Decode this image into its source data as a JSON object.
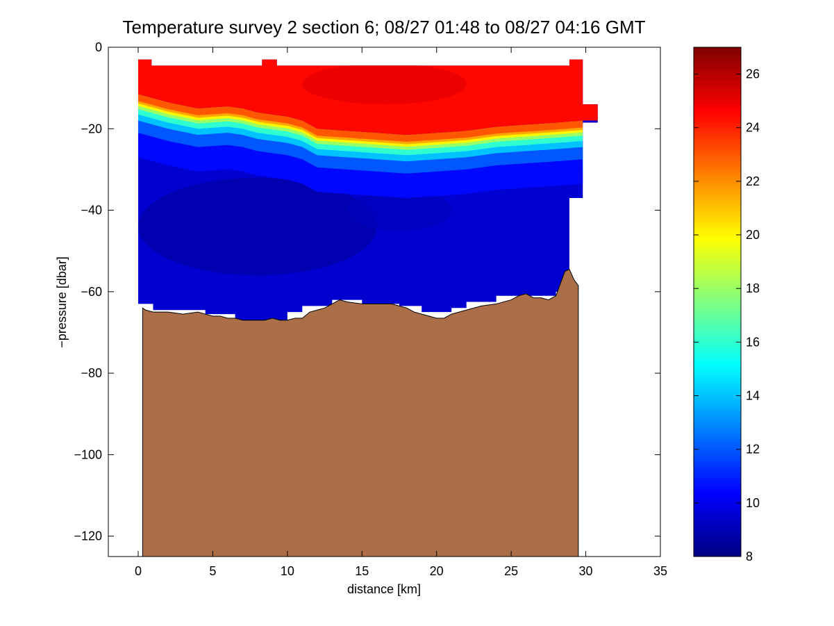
{
  "chart_data": {
    "type": "heatmap",
    "title": "Temperature survey 2 section 6; 08/27 01:48 to 08/27 04:16 GMT",
    "xlabel": "distance [km]",
    "ylabel": "−pressure [dbar]",
    "xlim": [
      -2,
      35
    ],
    "ylim": [
      -125,
      0
    ],
    "x_ticks": [
      0,
      5,
      10,
      15,
      20,
      25,
      30,
      35
    ],
    "x_tick_labels": [
      "0",
      "5",
      "10",
      "15",
      "20",
      "25",
      "30",
      "35"
    ],
    "y_ticks": [
      0,
      -20,
      -40,
      -60,
      -80,
      -100,
      -120
    ],
    "y_tick_labels": [
      "0",
      "−20",
      "−40",
      "−60",
      "−80",
      "−100",
      "−120"
    ],
    "grid": false,
    "colorbar": {
      "min": 8,
      "max": 27,
      "ticks": [
        8,
        10,
        12,
        14,
        16,
        18,
        20,
        22,
        24,
        26
      ],
      "tick_labels": [
        "8",
        "10",
        "12",
        "14",
        "16",
        "18",
        "20",
        "22",
        "24",
        "26"
      ],
      "colormap": "jet"
    },
    "seabed_color": "#ab6e49",
    "data_top_x": [
      0,
      0.9,
      0.9,
      8.3,
      8.3,
      9.3,
      9.3,
      28.9,
      28.9,
      29.8
    ],
    "data_top_y": [
      -3,
      -3,
      -4.5,
      -4.5,
      -3,
      -3,
      -4.5,
      -4.5,
      -3,
      -3
    ],
    "data_right_steps": [
      [
        29.8,
        -14
      ],
      [
        30.8,
        -14
      ],
      [
        30.8,
        -18.5
      ],
      [
        29.8,
        -18.5
      ],
      [
        29.8,
        -37
      ],
      [
        28.9,
        -37
      ],
      [
        28.9,
        -58
      ]
    ],
    "data_bottom_steps": [
      [
        0,
        -63
      ],
      [
        1,
        -63
      ],
      [
        1,
        -64.5
      ],
      [
        4.5,
        -64.5
      ],
      [
        4.5,
        -65.5
      ],
      [
        6.5,
        -65.5
      ],
      [
        6.5,
        -67.5
      ],
      [
        10,
        -67.5
      ],
      [
        10,
        -65
      ],
      [
        11,
        -65
      ],
      [
        11,
        -63.5
      ],
      [
        13,
        -63.5
      ],
      [
        13,
        -62
      ],
      [
        15,
        -62
      ],
      [
        15,
        -63
      ],
      [
        17.5,
        -63
      ],
      [
        17.5,
        -63.5
      ],
      [
        19,
        -63.5
      ],
      [
        19,
        -65
      ],
      [
        21,
        -65
      ],
      [
        21,
        -64
      ],
      [
        22,
        -64
      ],
      [
        22,
        -62.5
      ],
      [
        24,
        -62.5
      ],
      [
        24,
        -61
      ],
      [
        28,
        -61
      ],
      [
        28,
        -60
      ],
      [
        28.9,
        -60
      ]
    ],
    "thermocline": {
      "x": [
        0,
        2,
        4,
        6,
        7,
        8,
        10,
        11,
        12,
        14,
        16,
        18,
        20,
        22,
        24,
        26,
        28,
        29.8
      ],
      "y": [
        -15,
        -17,
        -18.5,
        -18,
        -18.5,
        -19.5,
        -20.5,
        -21.5,
        -23.5,
        -24,
        -24.5,
        -25,
        -24.5,
        -24,
        -23,
        -22.5,
        -22,
        -21.5
      ]
    },
    "warm_core_temp": 25,
    "surface_temp": 24.5,
    "deep_temp": 9.5,
    "cold_core_temp": 8.8,
    "cyan_lens_temp": 15.5,
    "seabed": {
      "x": [
        0.3,
        0.5,
        1,
        2,
        3,
        4,
        4.5,
        5,
        5.5,
        6,
        6.5,
        7,
        7.5,
        8,
        8.5,
        9,
        9.5,
        10,
        10.5,
        11,
        11.5,
        12,
        12.5,
        13,
        13.5,
        14,
        15,
        16,
        17,
        18,
        18.5,
        19,
        19.5,
        20,
        20.5,
        21,
        22,
        23,
        24,
        25,
        25.5,
        26,
        26.5,
        27,
        27.5,
        28,
        28.3,
        28.6,
        28.9,
        29.2,
        29.5
      ],
      "y": [
        -64,
        -64.5,
        -65,
        -65,
        -65.5,
        -65,
        -65.5,
        -66,
        -66,
        -66.5,
        -66.5,
        -67,
        -67,
        -67,
        -67,
        -66.5,
        -67,
        -67,
        -66.5,
        -66.5,
        -65,
        -64.5,
        -64,
        -63,
        -62,
        -62.5,
        -63,
        -63,
        -63,
        -64,
        -65,
        -65.5,
        -66,
        -66.5,
        -66.5,
        -65.5,
        -64.5,
        -63.5,
        -63,
        -62,
        -61,
        -60.5,
        -61.5,
        -61.5,
        -62,
        -61,
        -58,
        -55,
        -54.5,
        -57,
        -58.5
      ]
    }
  }
}
